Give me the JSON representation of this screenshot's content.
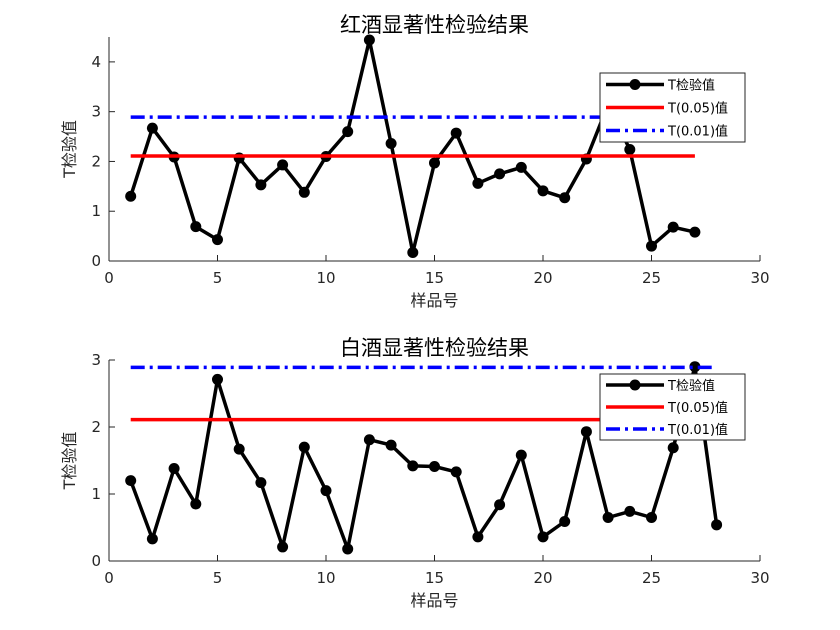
{
  "chart_data": [
    {
      "type": "line",
      "title": "红酒显著性检验结果",
      "xlabel": "样品号",
      "ylabel": "T检验值",
      "xlim": [
        0,
        30
      ],
      "ylim": [
        0,
        4.5
      ],
      "xticks": [
        0,
        5,
        10,
        15,
        20,
        25,
        30
      ],
      "yticks": [
        0,
        1,
        2,
        3,
        4
      ],
      "legend_position": "top-right",
      "series": [
        {
          "name": "T检验值",
          "color": "#000000",
          "style": "solid-markers",
          "x": [
            1,
            2,
            3,
            4,
            5,
            6,
            7,
            8,
            9,
            10,
            11,
            12,
            13,
            14,
            15,
            16,
            17,
            18,
            19,
            20,
            21,
            22,
            23,
            24,
            25,
            26,
            27
          ],
          "values": [
            1.3,
            2.67,
            2.09,
            0.69,
            0.43,
            2.07,
            1.53,
            1.93,
            1.38,
            2.1,
            2.6,
            4.44,
            2.36,
            0.17,
            1.97,
            2.57,
            1.56,
            1.75,
            1.88,
            1.41,
            1.27,
            2.05,
            3.14,
            2.24,
            0.3,
            0.68,
            0.58
          ]
        },
        {
          "name": "T(0.05)值",
          "color": "#ff0000",
          "style": "solid",
          "x": [
            1,
            27
          ],
          "values": [
            2.11,
            2.11
          ]
        },
        {
          "name": "T(0.01)值",
          "color": "#0000ff",
          "style": "dashdot",
          "x": [
            1,
            27
          ],
          "values": [
            2.89,
            2.89
          ]
        }
      ]
    },
    {
      "type": "line",
      "title": "白酒显著性检验结果",
      "xlabel": "样品号",
      "ylabel": "T检验值",
      "xlim": [
        0,
        30
      ],
      "ylim": [
        0,
        3
      ],
      "xticks": [
        0,
        5,
        10,
        15,
        20,
        25,
        30
      ],
      "yticks": [
        0,
        1,
        2,
        3
      ],
      "legend_position": "top-right",
      "series": [
        {
          "name": "T检验值",
          "color": "#000000",
          "style": "solid-markers",
          "x": [
            1,
            2,
            3,
            4,
            5,
            6,
            7,
            8,
            9,
            10,
            11,
            12,
            13,
            14,
            15,
            16,
            17,
            18,
            19,
            20,
            21,
            22,
            23,
            24,
            25,
            26,
            27,
            28
          ],
          "values": [
            1.2,
            0.33,
            1.38,
            0.85,
            2.71,
            1.67,
            1.17,
            0.21,
            1.7,
            1.05,
            0.18,
            1.81,
            1.73,
            1.42,
            1.41,
            1.33,
            0.36,
            0.84,
            1.58,
            0.36,
            0.59,
            1.93,
            0.65,
            0.74,
            0.65,
            1.69,
            2.9,
            0.54
          ]
        },
        {
          "name": "T(0.05)值",
          "color": "#ff0000",
          "style": "solid",
          "x": [
            1,
            28
          ],
          "values": [
            2.11,
            2.11
          ]
        },
        {
          "name": "T(0.01)值",
          "color": "#0000ff",
          "style": "dashdot",
          "x": [
            1,
            28
          ],
          "values": [
            2.89,
            2.89
          ]
        }
      ]
    }
  ]
}
